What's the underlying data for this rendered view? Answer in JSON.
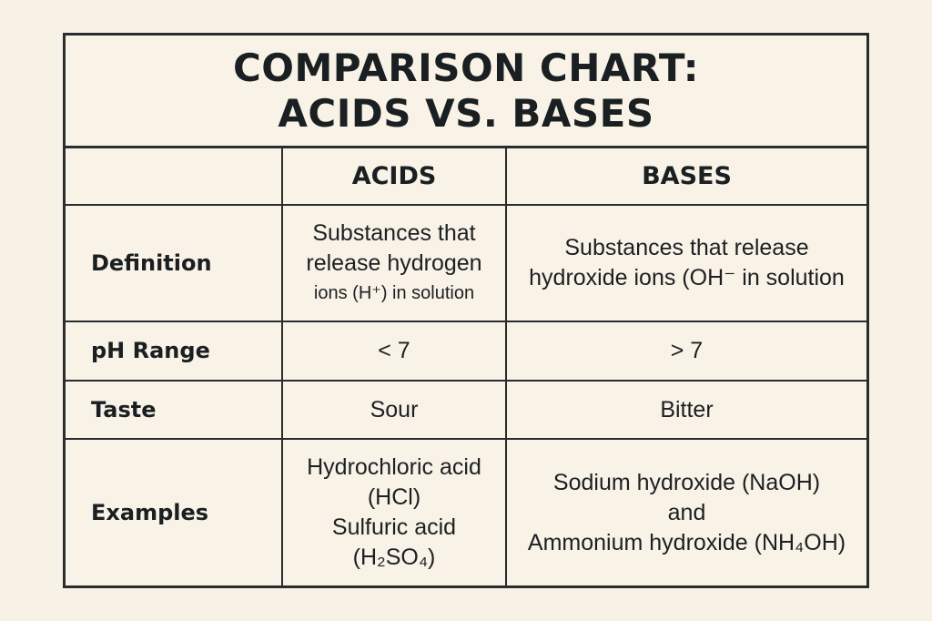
{
  "title": {
    "line1": "COMPARISON CHART:",
    "line2": "ACIDS VS. BASES"
  },
  "columns": {
    "acids": "ACIDS",
    "bases": "BASES"
  },
  "rows": {
    "definition": {
      "label": "Definition",
      "acids": [
        "Substances that",
        "release hydrogen",
        "ions (H⁺) in solution"
      ],
      "bases": [
        "Substances that release",
        "hydroxide ions (OH⁻ in solution"
      ]
    },
    "ph_range": {
      "label": "pH Range",
      "acids": "< 7",
      "bases": "> 7"
    },
    "taste": {
      "label": "Taste",
      "acids": "Sour",
      "bases": "Bitter"
    },
    "examples": {
      "label": "Examples",
      "acids": [
        "Hydrochloric acid",
        "(HCl)",
        "Sulfuric acid",
        "(H₂SO₄)"
      ],
      "bases": [
        "Sodium hydroxide (NaOH)",
        "and",
        "Ammonium hydroxide (NH₄OH)"
      ]
    }
  }
}
